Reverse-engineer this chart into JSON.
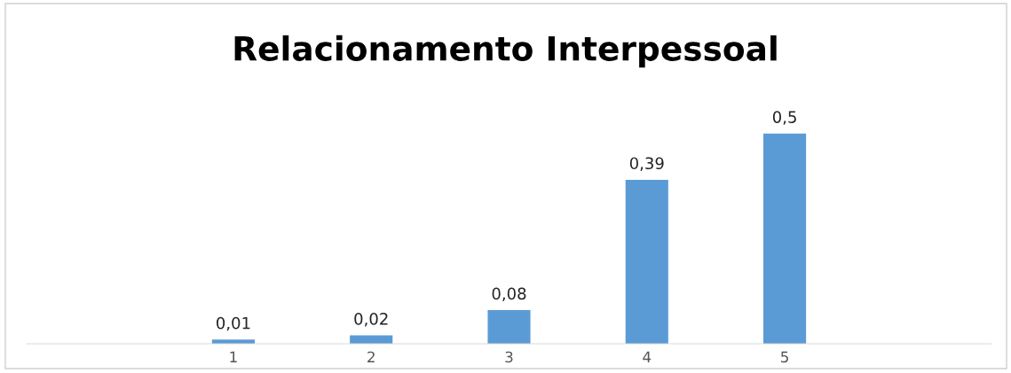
{
  "chart_data": {
    "type": "bar",
    "title": "Relacionamento Interpessoal",
    "categories": [
      null,
      "1",
      "2",
      "3",
      "4",
      "5",
      null
    ],
    "values": [
      null,
      0.01,
      0.02,
      0.08,
      0.39,
      0.5,
      null
    ],
    "value_labels": [
      null,
      "0,01",
      "0,02",
      "0,08",
      "0,39",
      "0,5",
      null
    ],
    "color": "#5b9bd5",
    "tick_labels": "x",
    "grid": false,
    "legend": false
  }
}
